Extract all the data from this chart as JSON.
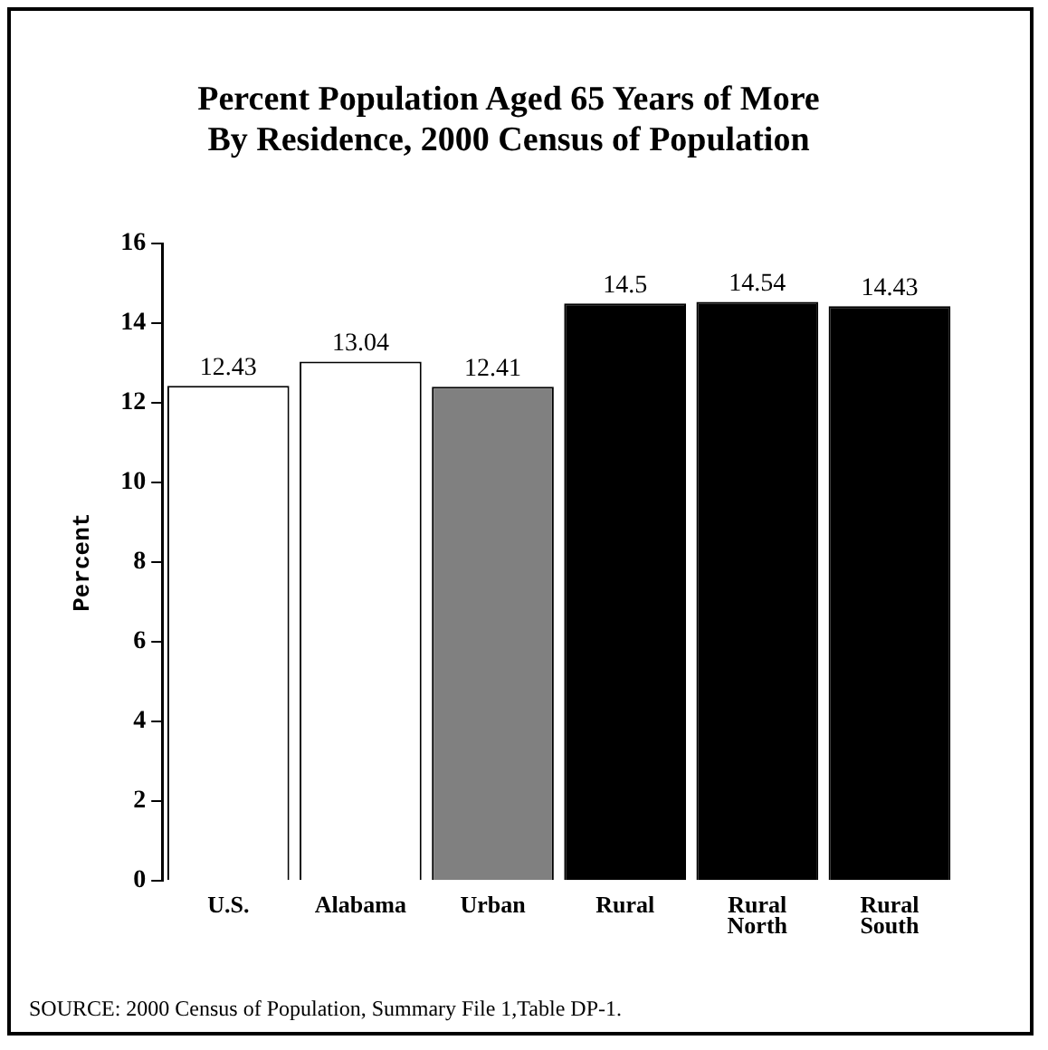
{
  "chart_data": {
    "type": "bar",
    "title": [
      "Percent Population Aged 65 Years of More",
      "By Residence, 2000 Census of Population"
    ],
    "ylabel": "Percent",
    "categories": [
      "U.S.",
      "Alabama",
      "Urban",
      "Rural",
      "Rural North",
      "Rural South"
    ],
    "values": [
      12.43,
      13.04,
      12.41,
      14.5,
      14.54,
      14.43
    ],
    "colors": [
      "#ffffff",
      "#ffffff",
      "#808080",
      "#000000",
      "#000000",
      "#000000"
    ],
    "ylim": [
      0,
      16
    ],
    "yticks": [
      0,
      2,
      4,
      6,
      8,
      10,
      12,
      14,
      16
    ],
    "grid": false,
    "legend": false,
    "data_labels": true,
    "annotations": [
      "SOURCE: 2000 Census of Population, Summary File 1,Table DP-1."
    ]
  }
}
